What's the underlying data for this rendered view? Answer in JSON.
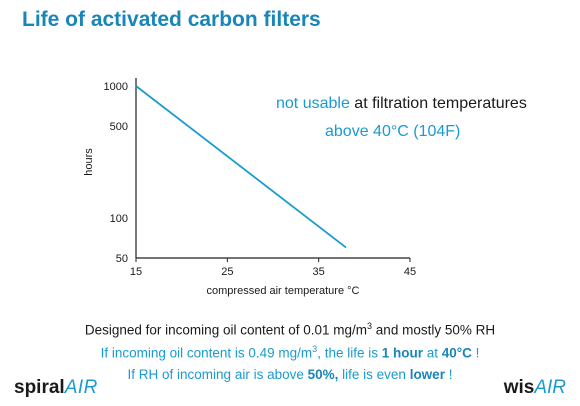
{
  "title": "Life of activated carbon filters",
  "annotation": {
    "line1_highlight": "not usable",
    "line1_rest": " at filtration temperatures",
    "line2": "above 40°C (104F)"
  },
  "footer": {
    "line1_a": "Designed for incoming oil content of 0.01 mg/m",
    "line1_sup": "3",
    "line1_b": " and mostly 50% RH",
    "line2_a": "If incoming oil content is 0.49 mg/m",
    "line2_sup": "3",
    "line2_b": ", the life is ",
    "line2_bold1": "1 hour",
    "line2_c": " at ",
    "line2_bold2": "40°C",
    "line2_d": " !",
    "line3_a": "If RH of incoming air is above ",
    "line3_bold1": "50%,",
    "line3_b": " life is even ",
    "line3_bold2": "lower",
    "line3_c": " !"
  },
  "logos": {
    "left_bold": "spiral",
    "left_thin": "AIR",
    "right_bold": "wis",
    "right_thin": "AIR"
  },
  "colors": {
    "accent": "#1a9bd0",
    "title": "#1a86b8",
    "text": "#1a1a1a"
  },
  "chart_data": {
    "type": "line",
    "xlabel": "compressed air temperature °C",
    "ylabel": "hours",
    "xticks": [
      15,
      25,
      35,
      45
    ],
    "yticks": [
      50,
      100,
      500,
      1000
    ],
    "xlim": [
      15,
      45
    ],
    "ylim": [
      50,
      1000
    ],
    "grid": false,
    "series": [
      {
        "x": [
          15,
          38
        ],
        "y": [
          1000,
          60
        ]
      }
    ]
  }
}
